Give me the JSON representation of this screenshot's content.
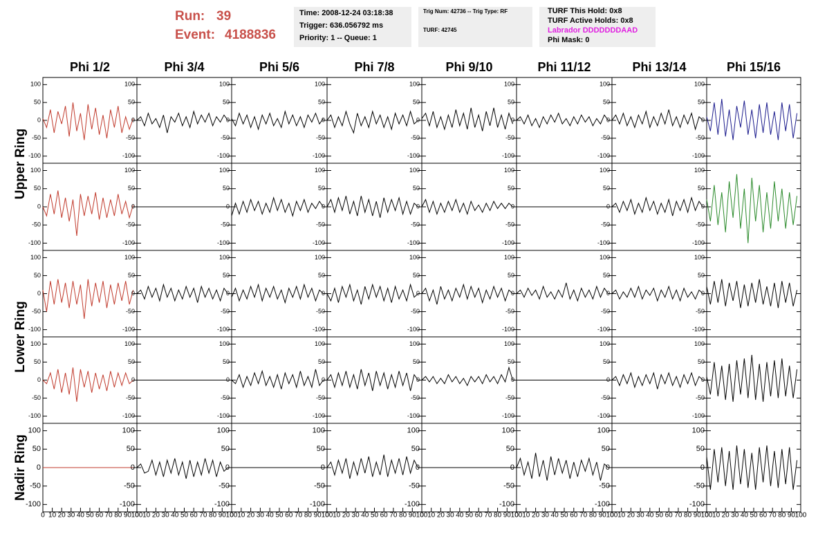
{
  "header": {
    "run_label": "Run:",
    "run": "39",
    "event_label": "Event:",
    "event": "4188836",
    "time_box": [
      "Time: 2008-12-24 03:18:38",
      "Trigger: 636.056792 ms",
      "Priority: 1 -- Queue: 1"
    ],
    "trig_box": [
      "Trig Num: 42736 -- Trig Type: RF",
      "TURF: 42745"
    ],
    "turf_box": [
      "TURF This Hold: 0x8",
      "TURF Active Holds: 0x8",
      "Labrador DDDDDDDAAD",
      "Phi Mask: 0"
    ]
  },
  "columns": [
    "Phi 1/2",
    "Phi 3/4",
    "Phi 5/6",
    "Phi 7/8",
    "Phi 9/10",
    "Phi 11/12",
    "Phi 13/14",
    "Phi 15/16"
  ],
  "rows": [
    "Upper Ring",
    "Lower Ring",
    "Nadir Ring"
  ],
  "axes": {
    "x": [
      0,
      4,
      8,
      12,
      16,
      20,
      24,
      28,
      32,
      36,
      40,
      44,
      48,
      52,
      56,
      60,
      64,
      68,
      72,
      76,
      80,
      84,
      88,
      92,
      96
    ],
    "xlim": [
      0,
      100
    ],
    "xticks": [
      0,
      10,
      20,
      30,
      40,
      50,
      60,
      70,
      80,
      90,
      100
    ],
    "ylim": [
      -120,
      120
    ],
    "yticks": [
      -100,
      -50,
      0,
      50,
      100
    ]
  },
  "chart_data": [
    {
      "type": "line",
      "color": "#c0392b",
      "values": [
        5,
        -20,
        30,
        -35,
        25,
        -10,
        40,
        -45,
        50,
        -30,
        20,
        -55,
        45,
        -25,
        35,
        -40,
        15,
        -50,
        30,
        -20,
        40,
        -35,
        10,
        -25,
        5
      ]
    },
    {
      "type": "line",
      "color": "#000000",
      "values": [
        0,
        10,
        -15,
        20,
        -10,
        5,
        -20,
        15,
        -35,
        10,
        -5,
        20,
        -15,
        10,
        -20,
        25,
        -10,
        15,
        -5,
        20,
        -15,
        10,
        -5,
        15,
        0
      ]
    },
    {
      "type": "line",
      "color": "#000000",
      "values": [
        5,
        -15,
        20,
        -10,
        15,
        -20,
        10,
        -25,
        15,
        -10,
        20,
        -15,
        5,
        -20,
        25,
        -10,
        15,
        -15,
        10,
        -20,
        15,
        -5,
        20,
        -10,
        5
      ]
    },
    {
      "type": "line",
      "color": "#000000",
      "values": [
        0,
        15,
        -20,
        10,
        -15,
        25,
        -10,
        -35,
        20,
        -15,
        10,
        -20,
        25,
        -10,
        15,
        -20,
        10,
        -25,
        20,
        -10,
        15,
        -15,
        25,
        -10,
        0
      ]
    },
    {
      "type": "line",
      "color": "#000000",
      "values": [
        5,
        20,
        -15,
        25,
        -20,
        10,
        -25,
        15,
        -20,
        30,
        -15,
        20,
        -25,
        35,
        -20,
        15,
        -30,
        25,
        -15,
        35,
        -20,
        15,
        -25,
        20,
        -10
      ]
    },
    {
      "type": "line",
      "color": "#000000",
      "values": [
        0,
        10,
        -10,
        15,
        -15,
        5,
        -20,
        10,
        -10,
        15,
        -5,
        20,
        -10,
        5,
        -15,
        10,
        -10,
        15,
        -5,
        10,
        -15,
        5,
        -10,
        15,
        0
      ]
    },
    {
      "type": "line",
      "color": "#000000",
      "values": [
        0,
        15,
        -10,
        20,
        -15,
        10,
        -20,
        15,
        -10,
        25,
        -20,
        10,
        -15,
        20,
        -10,
        30,
        -15,
        10,
        -20,
        15,
        -10,
        20,
        -25,
        10,
        0
      ]
    },
    {
      "type": "line",
      "color": "#1a1a8c",
      "values": [
        10,
        -30,
        50,
        -40,
        60,
        -45,
        30,
        -55,
        40,
        -20,
        55,
        -40,
        30,
        -50,
        45,
        -35,
        50,
        -40,
        25,
        -55,
        50,
        -30,
        45,
        -50,
        20
      ]
    },
    {
      "type": "line",
      "color": "#c0392b",
      "values": [
        0,
        -25,
        35,
        -20,
        45,
        -30,
        25,
        -40,
        20,
        -80,
        35,
        -25,
        30,
        -20,
        40,
        -35,
        25,
        -30,
        20,
        -25,
        35,
        -20,
        15,
        -30,
        5
      ]
    },
    {
      "type": "line",
      "color": "#000000",
      "values": [
        0,
        0,
        0,
        0,
        0,
        0,
        0,
        0,
        0,
        0,
        0,
        0,
        0,
        0,
        0,
        0,
        0,
        0,
        0,
        0,
        0,
        0,
        0,
        0,
        0
      ]
    },
    {
      "type": "line",
      "color": "#000000",
      "values": [
        -25,
        10,
        -20,
        15,
        -15,
        20,
        -10,
        15,
        -20,
        10,
        -15,
        25,
        -10,
        20,
        -15,
        10,
        -25,
        15,
        -10,
        20,
        -15,
        10,
        -5,
        15,
        0
      ]
    },
    {
      "type": "line",
      "color": "#000000",
      "values": [
        0,
        20,
        -15,
        25,
        -10,
        30,
        -20,
        15,
        -25,
        30,
        -15,
        20,
        -25,
        15,
        -30,
        25,
        -15,
        20,
        -10,
        25,
        -20,
        15,
        -20,
        10,
        0
      ]
    },
    {
      "type": "line",
      "color": "#000000",
      "values": [
        0,
        20,
        -15,
        15,
        -20,
        10,
        -15,
        15,
        -10,
        20,
        -15,
        10,
        -20,
        15,
        -10,
        5,
        -15,
        10,
        -10,
        15,
        -5,
        10,
        -5,
        10,
        0
      ]
    },
    {
      "type": "line",
      "color": "#000000",
      "values": [
        0,
        0,
        0,
        0,
        0,
        0,
        0,
        0,
        0,
        0,
        0,
        0,
        0,
        0,
        0,
        0,
        0,
        0,
        0,
        0,
        0,
        0,
        0,
        0,
        0
      ]
    },
    {
      "type": "line",
      "color": "#000000",
      "values": [
        0,
        10,
        -15,
        15,
        -10,
        20,
        -20,
        10,
        -15,
        25,
        -10,
        15,
        -20,
        10,
        -15,
        20,
        -25,
        15,
        -10,
        20,
        -15,
        25,
        -10,
        15,
        0
      ]
    },
    {
      "type": "line",
      "color": "#2a8a2a",
      "values": [
        20,
        -40,
        60,
        -50,
        40,
        -70,
        70,
        -30,
        90,
        -60,
        50,
        -100,
        80,
        -40,
        60,
        -70,
        40,
        -60,
        70,
        -40,
        50,
        -60,
        40,
        -50,
        30
      ]
    },
    {
      "type": "line",
      "color": "#c0392b",
      "values": [
        10,
        -50,
        35,
        -30,
        40,
        -25,
        30,
        -40,
        35,
        -30,
        25,
        -70,
        40,
        -35,
        30,
        -25,
        35,
        -40,
        25,
        -30,
        30,
        -20,
        35,
        -30,
        10
      ]
    },
    {
      "type": "line",
      "color": "#000000",
      "values": [
        0,
        10,
        -15,
        20,
        -10,
        15,
        -20,
        25,
        -10,
        15,
        -20,
        10,
        -15,
        20,
        -10,
        15,
        -25,
        20,
        -10,
        15,
        -15,
        10,
        -20,
        15,
        0
      ]
    },
    {
      "type": "line",
      "color": "#000000",
      "values": [
        -10,
        15,
        -20,
        10,
        -15,
        20,
        -10,
        25,
        -20,
        15,
        -10,
        20,
        -15,
        10,
        -25,
        15,
        -10,
        20,
        -15,
        25,
        -10,
        15,
        -20,
        10,
        0
      ]
    },
    {
      "type": "line",
      "color": "#000000",
      "values": [
        0,
        -20,
        15,
        -25,
        20,
        -10,
        25,
        -20,
        10,
        -30,
        20,
        -15,
        25,
        -10,
        20,
        -20,
        15,
        -25,
        20,
        -15,
        10,
        -20,
        25,
        -10,
        0
      ]
    },
    {
      "type": "line",
      "color": "#000000",
      "values": [
        0,
        15,
        -20,
        10,
        -30,
        20,
        -15,
        10,
        -20,
        15,
        -10,
        25,
        -15,
        20,
        -10,
        15,
        -25,
        10,
        -15,
        20,
        -10,
        15,
        -20,
        10,
        0
      ]
    },
    {
      "type": "line",
      "color": "#000000",
      "values": [
        0,
        10,
        -10,
        15,
        -5,
        10,
        -15,
        20,
        -10,
        5,
        -15,
        10,
        -10,
        30,
        -15,
        10,
        -20,
        15,
        -10,
        10,
        -15,
        20,
        -10,
        15,
        0
      ]
    },
    {
      "type": "line",
      "color": "#000000",
      "values": [
        0,
        10,
        -15,
        5,
        -10,
        15,
        -10,
        20,
        -15,
        10,
        -5,
        15,
        -20,
        10,
        -10,
        20,
        -15,
        10,
        -20,
        15,
        -10,
        5,
        -15,
        10,
        0
      ]
    },
    {
      "type": "line",
      "color": "#000000",
      "values": [
        20,
        -30,
        35,
        -25,
        40,
        -35,
        30,
        -20,
        35,
        -40,
        25,
        -35,
        30,
        -25,
        40,
        -30,
        20,
        -35,
        30,
        -40,
        35,
        -25,
        30,
        -35,
        10
      ]
    },
    {
      "type": "line",
      "color": "#c0392b",
      "values": [
        0,
        -10,
        20,
        -25,
        30,
        -35,
        20,
        -40,
        35,
        -60,
        30,
        -20,
        25,
        -35,
        20,
        -25,
        15,
        -30,
        25,
        -20,
        20,
        -15,
        20,
        -10,
        0
      ]
    },
    {
      "type": "line",
      "color": "#000000",
      "values": [
        0,
        0,
        0,
        0,
        0,
        0,
        0,
        0,
        0,
        0,
        0,
        0,
        0,
        0,
        0,
        0,
        0,
        0,
        0,
        0,
        0,
        0,
        0,
        0,
        0
      ]
    },
    {
      "type": "line",
      "color": "#000000",
      "values": [
        0,
        -10,
        15,
        -20,
        10,
        -15,
        20,
        -10,
        25,
        -15,
        10,
        -20,
        15,
        -25,
        20,
        -10,
        15,
        -20,
        25,
        -15,
        10,
        -20,
        30,
        -15,
        0
      ]
    },
    {
      "type": "line",
      "color": "#000000",
      "values": [
        0,
        15,
        -20,
        20,
        -15,
        25,
        -20,
        15,
        -25,
        30,
        -15,
        20,
        -30,
        25,
        -15,
        20,
        -25,
        15,
        -20,
        25,
        -15,
        20,
        -30,
        15,
        0
      ]
    },
    {
      "type": "line",
      "color": "#000000",
      "values": [
        0,
        10,
        -5,
        10,
        -10,
        5,
        -10,
        15,
        -5,
        10,
        -10,
        5,
        -15,
        10,
        -5,
        10,
        -10,
        15,
        -5,
        10,
        -10,
        15,
        -5,
        35,
        0
      ]
    },
    {
      "type": "line",
      "color": "#000000",
      "values": [
        0,
        0,
        0,
        0,
        0,
        0,
        0,
        0,
        0,
        0,
        0,
        0,
        0,
        0,
        0,
        0,
        0,
        0,
        0,
        0,
        0,
        0,
        0,
        0,
        0
      ]
    },
    {
      "type": "line",
      "color": "#000000",
      "values": [
        0,
        10,
        -15,
        15,
        -10,
        20,
        -20,
        10,
        -15,
        15,
        -10,
        20,
        -25,
        15,
        -10,
        20,
        -15,
        10,
        -20,
        15,
        -10,
        20,
        -15,
        10,
        0
      ]
    },
    {
      "type": "line",
      "color": "#000000",
      "values": [
        10,
        -40,
        50,
        -45,
        40,
        -55,
        45,
        -60,
        55,
        -40,
        60,
        -50,
        70,
        -55,
        45,
        -60,
        50,
        -45,
        55,
        -50,
        60,
        -45,
        40,
        -50,
        30
      ]
    },
    {
      "type": "line",
      "color": "#c0392b",
      "values": [
        0,
        0,
        0,
        0,
        0,
        0,
        0,
        0,
        0,
        0,
        0,
        0,
        0,
        0,
        0,
        0,
        0,
        0,
        0,
        0,
        0,
        0,
        0,
        0,
        0
      ]
    },
    {
      "type": "line",
      "color": "#000000",
      "values": [
        0,
        10,
        -15,
        -10,
        20,
        -20,
        15,
        -25,
        20,
        -15,
        25,
        -20,
        15,
        -30,
        20,
        -25,
        15,
        -20,
        25,
        -15,
        20,
        -25,
        15,
        -10,
        0
      ]
    },
    {
      "type": "line",
      "color": "#000000",
      "values": [
        0,
        0,
        0,
        0,
        0,
        0,
        0,
        0,
        0,
        0,
        0,
        0,
        0,
        0,
        0,
        0,
        0,
        0,
        0,
        0,
        0,
        0,
        0,
        0,
        0
      ]
    },
    {
      "type": "line",
      "color": "#000000",
      "values": [
        0,
        15,
        -20,
        20,
        -15,
        25,
        -30,
        15,
        -20,
        25,
        -15,
        30,
        -25,
        15,
        -20,
        35,
        -25,
        20,
        -15,
        25,
        -20,
        30,
        -15,
        20,
        0
      ]
    },
    {
      "type": "line",
      "color": "#000000",
      "values": [
        0,
        0,
        0,
        0,
        0,
        0,
        0,
        0,
        0,
        0,
        0,
        0,
        0,
        0,
        0,
        0,
        0,
        0,
        0,
        0,
        0,
        0,
        0,
        0,
        0
      ]
    },
    {
      "type": "line",
      "color": "#000000",
      "values": [
        0,
        25,
        -20,
        15,
        -30,
        40,
        -25,
        20,
        -35,
        30,
        -20,
        25,
        -15,
        20,
        -30,
        15,
        -25,
        20,
        -10,
        25,
        -20,
        15,
        -35,
        10,
        0
      ]
    },
    {
      "type": "line",
      "color": "#000000",
      "values": [
        0,
        0,
        0,
        0,
        0,
        0,
        0,
        0,
        0,
        0,
        0,
        0,
        0,
        0,
        0,
        0,
        0,
        0,
        0,
        0,
        0,
        0,
        0,
        0,
        0
      ]
    },
    {
      "type": "line",
      "color": "#000000",
      "values": [
        30,
        -60,
        50,
        -40,
        55,
        -50,
        45,
        -60,
        60,
        -45,
        50,
        -55,
        40,
        -60,
        55,
        -40,
        60,
        -50,
        45,
        -55,
        50,
        -45,
        55,
        -60,
        20
      ]
    }
  ]
}
